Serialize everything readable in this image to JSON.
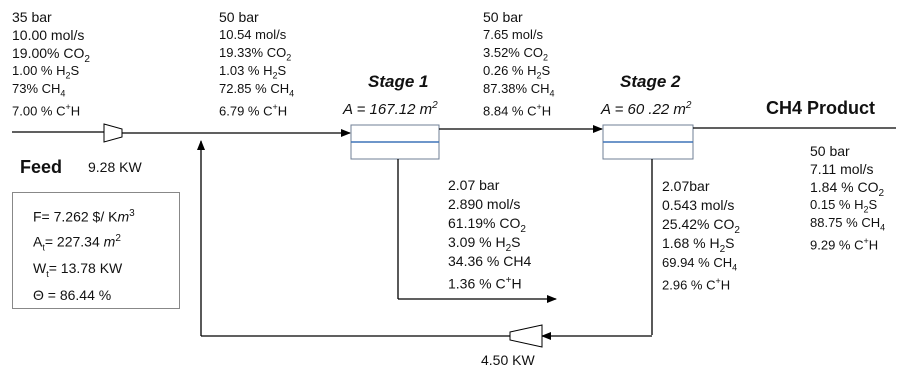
{
  "feed": {
    "label": "Feed",
    "pressure": "35 bar",
    "flow": "10.00 mol/s",
    "co2": "19.00% CO",
    "h2s": "1.00 % H",
    "ch4": "73% CH",
    "chp": "7.00 % C",
    "compressor_power": "9.28 KW"
  },
  "stage1": {
    "title": "Stage 1",
    "area_prefix": "A = 167.12",
    "area_unit": "m",
    "inlet": {
      "pressure": "50 bar",
      "flow": "10.54 mol/s",
      "co2": "19.33% CO",
      "h2s": "1.03 % H",
      "ch4": "72.85 % CH",
      "chp": "6.79 % C"
    },
    "permeate": {
      "pressure": "2.07 bar",
      "flow": "2.890 mol/s",
      "co2": "61.19% CO",
      "h2s": "3.09 % H",
      "ch4": "34.36 % CH4",
      "chp": "1.36 %  C"
    }
  },
  "stage2": {
    "title": "Stage 2",
    "area_prefix": "A = 60 .22",
    "area_unit": "m",
    "inlet": {
      "pressure": "50 bar",
      "flow": "7.65 mol/s",
      "co2": "3.52% CO",
      "h2s": "0.26 % H",
      "ch4": "87.38% CH",
      "chp": "8.84 %  C"
    },
    "permeate": {
      "pressure": "2.07bar",
      "flow": "0.543 mol/s",
      "co2": "25.42% CO",
      "h2s": "1.68 % H",
      "ch4": "69.94 % CH",
      "chp": "2.96 %  C"
    },
    "recycle_power": "4.50 KW"
  },
  "product": {
    "title": "CH4 Product",
    "pressure": "50 bar",
    "flow": "7.11 mol/s",
    "co2": "1.84 % CO",
    "h2s": "0.15 % H",
    "ch4": "88.75 % CH",
    "chp": "9.29 % C"
  },
  "summary": {
    "f": "F= 7.262 $/ K",
    "f_unit": "m",
    "at": "A",
    "at_sub": "t",
    "at_val": "= 227.34",
    "at_unit": "m",
    "wt": "W",
    "wt_sub": "t",
    "wt_val": "= 13.78 KW",
    "theta": "Θ = 86.44 %"
  },
  "glyphs": {
    "sub2": "2",
    "sub4": "4",
    "sup3": "3",
    "sup_plus": "+",
    "h_letter": "H",
    "s_letter": "S"
  }
}
